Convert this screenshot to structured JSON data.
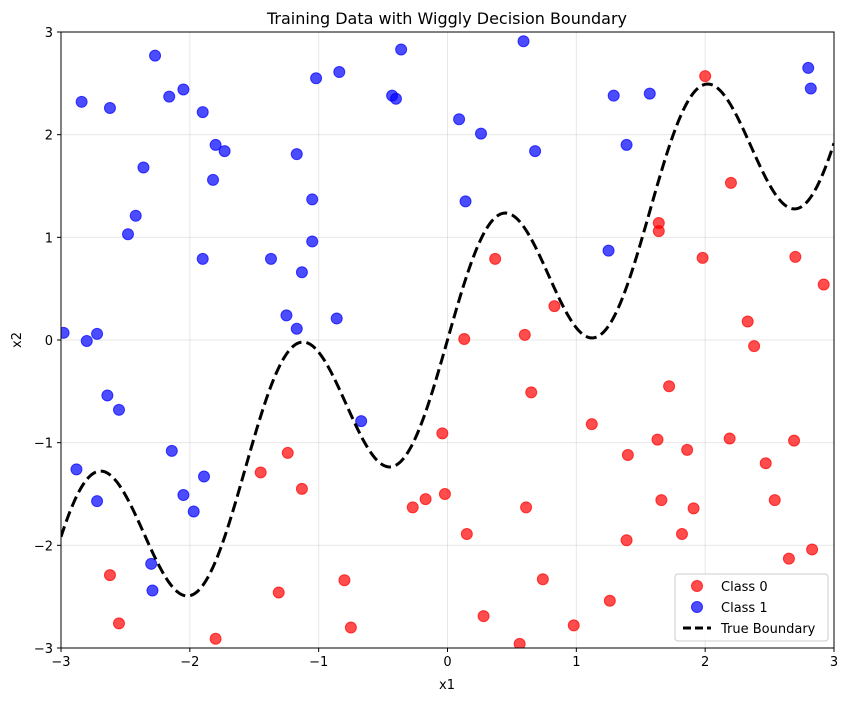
{
  "chart_data": {
    "type": "scatter",
    "title": "Training Data with Wiggly Decision Boundary",
    "xlabel": "x1",
    "ylabel": "x2",
    "xlim": [
      -3,
      3
    ],
    "ylim": [
      -3,
      3
    ],
    "xticks": [
      -3,
      -2,
      -1,
      0,
      1,
      2,
      3
    ],
    "yticks": [
      -3,
      -2,
      -1,
      0,
      1,
      2,
      3
    ],
    "xtick_labels": [
      "−3",
      "−2",
      "−1",
      "0",
      "1",
      "2",
      "3"
    ],
    "ytick_labels": [
      "−3",
      "−2",
      "−1",
      "0",
      "1",
      "2",
      "3"
    ],
    "grid": true,
    "legend_position": "lower-right",
    "series": [
      {
        "name": "Class 0",
        "color": "#ff0000",
        "points": [
          [
            2.0,
            2.57
          ],
          [
            2.2,
            1.53
          ],
          [
            1.64,
            1.14
          ],
          [
            1.64,
            1.06
          ],
          [
            1.98,
            0.8
          ],
          [
            2.7,
            0.81
          ],
          [
            2.92,
            0.54
          ],
          [
            0.37,
            0.79
          ],
          [
            0.83,
            0.33
          ],
          [
            2.33,
            0.18
          ],
          [
            2.38,
            -0.06
          ],
          [
            0.13,
            0.01
          ],
          [
            0.6,
            0.05
          ],
          [
            1.72,
            -0.45
          ],
          [
            0.65,
            -0.51
          ],
          [
            1.12,
            -0.82
          ],
          [
            -0.04,
            -0.91
          ],
          [
            1.63,
            -0.97
          ],
          [
            2.19,
            -0.96
          ],
          [
            2.69,
            -0.98
          ],
          [
            1.4,
            -1.12
          ],
          [
            1.86,
            -1.07
          ],
          [
            2.47,
            -1.2
          ],
          [
            -1.45,
            -1.29
          ],
          [
            -1.24,
            -1.1
          ],
          [
            -1.13,
            -1.45
          ],
          [
            -0.02,
            -1.5
          ],
          [
            -0.17,
            -1.55
          ],
          [
            -0.27,
            -1.63
          ],
          [
            1.66,
            -1.56
          ],
          [
            2.54,
            -1.56
          ],
          [
            0.61,
            -1.63
          ],
          [
            1.91,
            -1.64
          ],
          [
            0.15,
            -1.89
          ],
          [
            1.39,
            -1.95
          ],
          [
            1.82,
            -1.89
          ],
          [
            2.83,
            -2.04
          ],
          [
            2.65,
            -2.13
          ],
          [
            -2.62,
            -2.29
          ],
          [
            0.74,
            -2.33
          ],
          [
            -0.8,
            -2.34
          ],
          [
            -1.31,
            -2.46
          ],
          [
            1.26,
            -2.54
          ],
          [
            0.28,
            -2.69
          ],
          [
            -2.55,
            -2.76
          ],
          [
            -0.75,
            -2.8
          ],
          [
            0.98,
            -2.78
          ],
          [
            -1.8,
            -2.91
          ],
          [
            0.56,
            -2.96
          ]
        ]
      },
      {
        "name": "Class 1",
        "color": "#0000ff",
        "points": [
          [
            -2.27,
            2.77
          ],
          [
            -2.84,
            2.32
          ],
          [
            -2.62,
            2.26
          ],
          [
            -2.16,
            2.37
          ],
          [
            -2.05,
            2.44
          ],
          [
            -1.9,
            2.22
          ],
          [
            -1.02,
            2.55
          ],
          [
            -0.84,
            2.61
          ],
          [
            -0.36,
            2.83
          ],
          [
            -0.43,
            2.38
          ],
          [
            -0.4,
            2.35
          ],
          [
            0.59,
            2.91
          ],
          [
            2.8,
            2.65
          ],
          [
            2.82,
            2.45
          ],
          [
            1.29,
            2.38
          ],
          [
            1.57,
            2.4
          ],
          [
            0.09,
            2.15
          ],
          [
            0.26,
            2.01
          ],
          [
            -1.8,
            1.9
          ],
          [
            -1.73,
            1.84
          ],
          [
            -1.17,
            1.81
          ],
          [
            0.68,
            1.84
          ],
          [
            1.39,
            1.9
          ],
          [
            -2.36,
            1.68
          ],
          [
            -1.82,
            1.56
          ],
          [
            -1.05,
            1.37
          ],
          [
            0.14,
            1.35
          ],
          [
            -2.42,
            1.21
          ],
          [
            -2.48,
            1.03
          ],
          [
            -1.05,
            0.96
          ],
          [
            1.25,
            0.87
          ],
          [
            -1.9,
            0.79
          ],
          [
            -1.37,
            0.79
          ],
          [
            -1.13,
            0.66
          ],
          [
            -1.25,
            0.24
          ],
          [
            -0.86,
            0.21
          ],
          [
            -1.17,
            0.11
          ],
          [
            -2.98,
            0.07
          ],
          [
            -2.72,
            0.06
          ],
          [
            -2.8,
            -0.01
          ],
          [
            -2.64,
            -0.54
          ],
          [
            -2.55,
            -0.68
          ],
          [
            -0.67,
            -0.79
          ],
          [
            -2.14,
            -1.08
          ],
          [
            -2.88,
            -1.26
          ],
          [
            -1.89,
            -1.33
          ],
          [
            -2.05,
            -1.51
          ],
          [
            -2.72,
            -1.57
          ],
          [
            -1.97,
            -1.67
          ],
          [
            -2.3,
            -2.18
          ],
          [
            -2.29,
            -2.44
          ]
        ]
      },
      {
        "name": "True Boundary",
        "color": "#000000",
        "style": "dashed",
        "function": "y = 0.8*x + 0.9*sin(4*x)"
      }
    ]
  }
}
